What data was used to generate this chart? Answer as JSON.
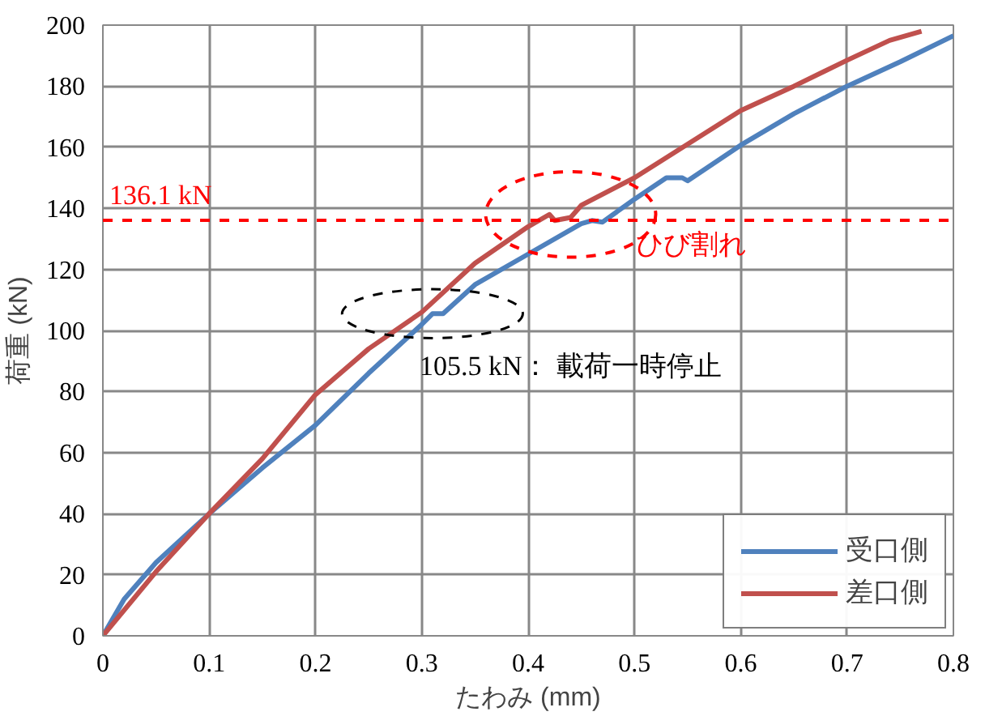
{
  "chart_data": {
    "type": "line",
    "xlabel": "たわみ (mm)",
    "ylabel": "荷重 (kN)",
    "xlim": [
      0,
      0.8
    ],
    "xticks": [
      {
        "value": 0,
        "label": "0"
      },
      0.1,
      0.2,
      0.3,
      0.4,
      0.5,
      0.6,
      0.7,
      0.8
    ],
    "ylim": [
      0,
      200
    ],
    "yticks": [
      0,
      20,
      40,
      60,
      80,
      100,
      120,
      140,
      160,
      180,
      200
    ],
    "grid": true,
    "legend": "bottom right",
    "line_style": "solid",
    "marker": "none",
    "series": [
      {
        "name": "受口側",
        "color": "#4f81bd",
        "x": [
          0,
          0.02,
          0.05,
          0.1,
          0.15,
          0.2,
          0.25,
          0.3,
          0.31,
          0.32,
          0.35,
          0.4,
          0.45,
          0.46,
          0.47,
          0.5,
          0.53,
          0.545,
          0.55,
          0.6,
          0.65,
          0.7,
          0.75,
          0.8
        ],
        "values": [
          0,
          12,
          24,
          40,
          55,
          69,
          86,
          102,
          105.5,
          105.5,
          115,
          125,
          135,
          136,
          135.5,
          143,
          150,
          150,
          149,
          160.7,
          171,
          180,
          188,
          196.5
        ]
      },
      {
        "name": "差口側",
        "color": "#c0504d",
        "x": [
          0,
          0.05,
          0.1,
          0.15,
          0.2,
          0.25,
          0.3,
          0.35,
          0.4,
          0.42,
          0.425,
          0.44,
          0.45,
          0.5,
          0.55,
          0.6,
          0.65,
          0.7,
          0.74,
          0.77
        ],
        "values": [
          0,
          21,
          40,
          58,
          79,
          94,
          106,
          122,
          134,
          138,
          136,
          137,
          141,
          150,
          161,
          172,
          180,
          188.5,
          195,
          198
        ]
      }
    ],
    "ref_lines": [
      {
        "axis": "y",
        "value": 136.1,
        "label": "136.1 kN",
        "color": "#ff0000",
        "line_style": "dashed"
      }
    ],
    "annotations": [
      {
        "text": "105.5 kN： 載荷一時停止",
        "x": 0.31,
        "y": 105.5
      },
      {
        "text": "ひび割れ",
        "x": 0.44,
        "y": 138
      }
    ]
  }
}
